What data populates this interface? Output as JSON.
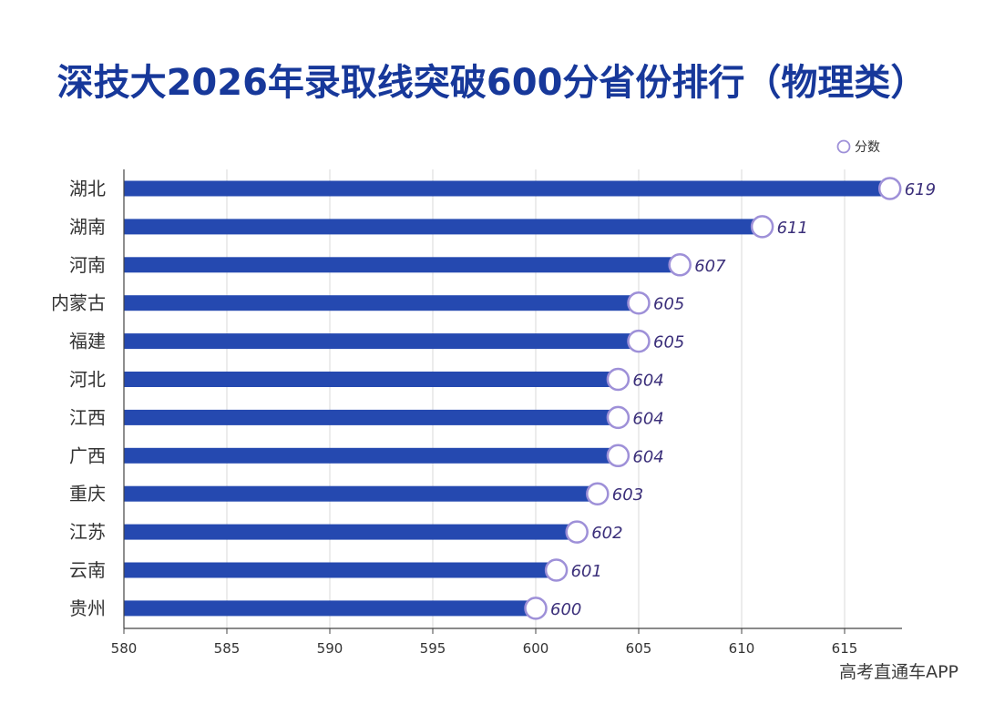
{
  "chart_data": {
    "type": "bar",
    "orientation": "horizontal",
    "title": "深技大2026年录取线突破600分省份排行（物理类）",
    "legend": {
      "label": "分数",
      "placement": "top-right"
    },
    "categories": [
      "湖北",
      "湖南",
      "河南",
      "内蒙古",
      "福建",
      "河北",
      "江西",
      "广西",
      "重庆",
      "江苏",
      "云南",
      "贵州"
    ],
    "series": [
      {
        "name": "分数",
        "values": [
          619,
          611,
          607,
          605,
          605,
          604,
          604,
          604,
          603,
          602,
          601,
          600
        ]
      }
    ],
    "xlim": [
      580,
      617.5
    ],
    "xticks": [
      580,
      585,
      590,
      595,
      600,
      605,
      610,
      615
    ],
    "grid": "vertical",
    "colors": {
      "bar": "#2549b0",
      "marker_stroke": "#9e90d8",
      "label": "#3b2f7a",
      "title": "#17389a"
    }
  },
  "watermark": "高考直通车APP"
}
